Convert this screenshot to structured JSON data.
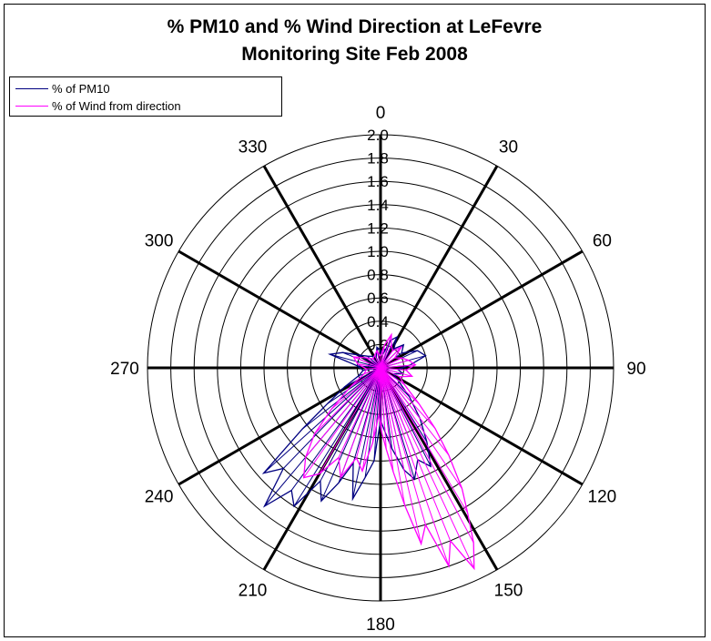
{
  "chart_data": {
    "type": "radar",
    "title_lines": [
      "% PM10 and % Wind Direction at LeFevre",
      "Monitoring Site Feb 2008"
    ],
    "angle_labels": [
      "0",
      "30",
      "60",
      "90",
      "120",
      "150",
      "180",
      "210",
      "240",
      "270",
      "300",
      "330"
    ],
    "radial_ticks": [
      "0.0",
      "0.2",
      "0.4",
      "0.6",
      "0.8",
      "1.0",
      "1.2",
      "1.4",
      "1.6",
      "1.8",
      "2.0"
    ],
    "rlim": [
      0,
      2.0
    ],
    "legend_position": "top-left",
    "series": [
      {
        "name": "% of PM10",
        "color": "#000080",
        "points": [
          {
            "dir": 0,
            "value": 0.15
          },
          {
            "dir": 10,
            "value": 0.12
          },
          {
            "dir": 20,
            "value": 0.25
          },
          {
            "dir": 28,
            "value": 0.3
          },
          {
            "dir": 35,
            "value": 0.2
          },
          {
            "dir": 45,
            "value": 0.28
          },
          {
            "dir": 55,
            "value": 0.22
          },
          {
            "dir": 65,
            "value": 0.35
          },
          {
            "dir": 75,
            "value": 0.4
          },
          {
            "dir": 85,
            "value": 0.25
          },
          {
            "dir": 95,
            "value": 0.15
          },
          {
            "dir": 105,
            "value": 0.2
          },
          {
            "dir": 115,
            "value": 0.12
          },
          {
            "dir": 125,
            "value": 0.18
          },
          {
            "dir": 135,
            "value": 0.35
          },
          {
            "dir": 142,
            "value": 0.55
          },
          {
            "dir": 148,
            "value": 0.75
          },
          {
            "dir": 153,
            "value": 0.95
          },
          {
            "dir": 158,
            "value": 0.85
          },
          {
            "dir": 163,
            "value": 1.0
          },
          {
            "dir": 167,
            "value": 0.9
          },
          {
            "dir": 172,
            "value": 0.7
          },
          {
            "dir": 176,
            "value": 0.55
          },
          {
            "dir": 180,
            "value": 0.45
          },
          {
            "dir": 184,
            "value": 0.8
          },
          {
            "dir": 188,
            "value": 0.95
          },
          {
            "dir": 192,
            "value": 1.15
          },
          {
            "dir": 196,
            "value": 0.85
          },
          {
            "dir": 200,
            "value": 1.05
          },
          {
            "dir": 204,
            "value": 1.25
          },
          {
            "dir": 208,
            "value": 1.1
          },
          {
            "dir": 212,
            "value": 1.4
          },
          {
            "dir": 216,
            "value": 1.3
          },
          {
            "dir": 220,
            "value": 1.55
          },
          {
            "dir": 224,
            "value": 1.2
          },
          {
            "dir": 228,
            "value": 1.35
          },
          {
            "dir": 232,
            "value": 0.85
          },
          {
            "dir": 236,
            "value": 0.55
          },
          {
            "dir": 242,
            "value": 0.35
          },
          {
            "dir": 250,
            "value": 0.2
          },
          {
            "dir": 262,
            "value": 0.15
          },
          {
            "dir": 275,
            "value": 0.2
          },
          {
            "dir": 285,
            "value": 0.45
          },
          {
            "dir": 292,
            "value": 0.35
          },
          {
            "dir": 300,
            "value": 0.22
          },
          {
            "dir": 312,
            "value": 0.15
          },
          {
            "dir": 325,
            "value": 0.12
          },
          {
            "dir": 338,
            "value": 0.1
          },
          {
            "dir": 350,
            "value": 0.18
          },
          {
            "dir": 360,
            "value": 0.15
          }
        ]
      },
      {
        "name": "% of Wind from direction",
        "color": "#ff00ff",
        "points": [
          {
            "dir": 0,
            "value": 0.1
          },
          {
            "dir": 10,
            "value": 0.2
          },
          {
            "dir": 18,
            "value": 0.3
          },
          {
            "dir": 25,
            "value": 0.22
          },
          {
            "dir": 35,
            "value": 0.18
          },
          {
            "dir": 45,
            "value": 0.25
          },
          {
            "dir": 55,
            "value": 0.15
          },
          {
            "dir": 65,
            "value": 0.2
          },
          {
            "dir": 75,
            "value": 0.25
          },
          {
            "dir": 85,
            "value": 0.3
          },
          {
            "dir": 95,
            "value": 0.22
          },
          {
            "dir": 105,
            "value": 0.28
          },
          {
            "dir": 115,
            "value": 0.18
          },
          {
            "dir": 125,
            "value": 0.25
          },
          {
            "dir": 133,
            "value": 0.45
          },
          {
            "dir": 138,
            "value": 0.7
          },
          {
            "dir": 142,
            "value": 0.95
          },
          {
            "dir": 146,
            "value": 1.25
          },
          {
            "dir": 149,
            "value": 1.45
          },
          {
            "dir": 152,
            "value": 1.7
          },
          {
            "dir": 155,
            "value": 1.9
          },
          {
            "dir": 158,
            "value": 1.6
          },
          {
            "dir": 161,
            "value": 1.8
          },
          {
            "dir": 164,
            "value": 1.4
          },
          {
            "dir": 167,
            "value": 1.55
          },
          {
            "dir": 170,
            "value": 1.2
          },
          {
            "dir": 173,
            "value": 0.9
          },
          {
            "dir": 176,
            "value": 0.7
          },
          {
            "dir": 179,
            "value": 0.55
          },
          {
            "dir": 182,
            "value": 0.4
          },
          {
            "dir": 186,
            "value": 0.65
          },
          {
            "dir": 190,
            "value": 0.9
          },
          {
            "dir": 195,
            "value": 0.8
          },
          {
            "dir": 200,
            "value": 1.0
          },
          {
            "dir": 205,
            "value": 0.85
          },
          {
            "dir": 210,
            "value": 1.05
          },
          {
            "dir": 215,
            "value": 1.15
          },
          {
            "dir": 220,
            "value": 1.0
          },
          {
            "dir": 225,
            "value": 0.8
          },
          {
            "dir": 230,
            "value": 0.55
          },
          {
            "dir": 238,
            "value": 0.3
          },
          {
            "dir": 250,
            "value": 0.15
          },
          {
            "dir": 265,
            "value": 0.12
          },
          {
            "dir": 280,
            "value": 0.2
          },
          {
            "dir": 292,
            "value": 0.25
          },
          {
            "dir": 305,
            "value": 0.15
          },
          {
            "dir": 320,
            "value": 0.1
          },
          {
            "dir": 335,
            "value": 0.12
          },
          {
            "dir": 348,
            "value": 0.15
          },
          {
            "dir": 360,
            "value": 0.1
          }
        ]
      }
    ]
  }
}
